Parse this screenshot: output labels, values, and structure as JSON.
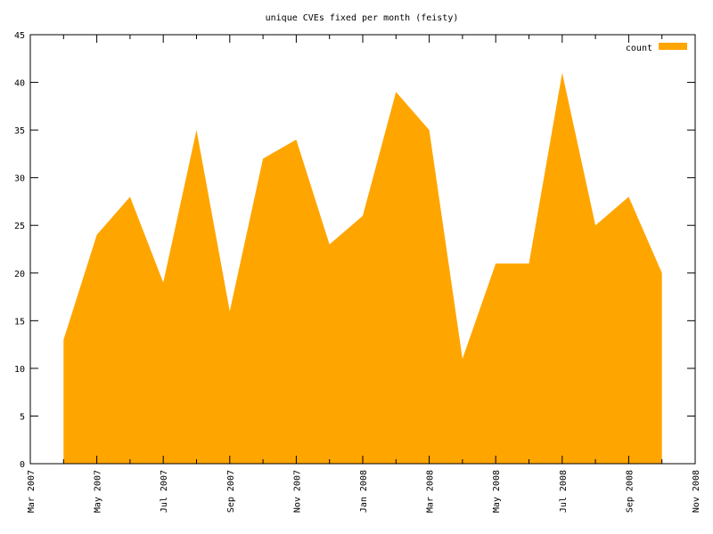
{
  "chart_data": {
    "type": "area",
    "title": "unique CVEs fixed per month (feisty)",
    "xlabel": "",
    "ylabel": "",
    "legend": {
      "position": "top-right",
      "entries": [
        "count"
      ]
    },
    "grid": false,
    "x_range": [
      "2007-03",
      "2008-11"
    ],
    "ylim": [
      0,
      45
    ],
    "y_ticks": [
      0,
      5,
      10,
      15,
      20,
      25,
      30,
      35,
      40,
      45
    ],
    "x_ticks": [
      {
        "date": "2007-03",
        "label": "Mar 2007"
      },
      {
        "date": "2007-05",
        "label": "May 2007"
      },
      {
        "date": "2007-07",
        "label": "Jul 2007"
      },
      {
        "date": "2007-09",
        "label": "Sep 2007"
      },
      {
        "date": "2007-11",
        "label": "Nov 2007"
      },
      {
        "date": "2008-01",
        "label": "Jan 2008"
      },
      {
        "date": "2008-03",
        "label": "Mar 2008"
      },
      {
        "date": "2008-05",
        "label": "May 2008"
      },
      {
        "date": "2008-07",
        "label": "Jul 2008"
      },
      {
        "date": "2008-09",
        "label": "Sep 2008"
      },
      {
        "date": "2008-11",
        "label": "Nov 2008"
      }
    ],
    "series": [
      {
        "name": "count",
        "color": "#ffa500",
        "x": [
          "2007-04",
          "2007-05",
          "2007-06",
          "2007-07",
          "2007-08",
          "2007-09",
          "2007-10",
          "2007-11",
          "2007-12",
          "2008-01",
          "2008-02",
          "2008-03",
          "2008-04",
          "2008-05",
          "2008-06",
          "2008-07",
          "2008-08",
          "2008-09",
          "2008-10"
        ],
        "values": [
          13,
          24,
          28,
          19,
          35,
          16,
          32,
          34,
          23,
          26,
          39,
          35,
          11,
          21,
          21,
          41,
          25,
          28,
          20
        ]
      }
    ]
  }
}
